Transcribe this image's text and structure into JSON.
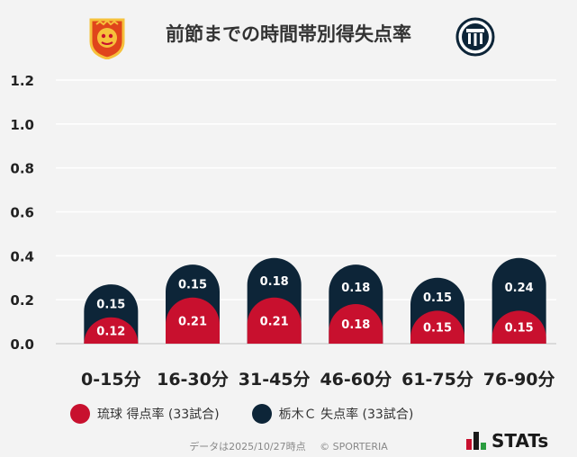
{
  "title": "前節までの時間帯別得失点率",
  "logos": {
    "left": "ryukyu-crest-icon",
    "right": "tochigi-crest-icon"
  },
  "colors": {
    "home": "#c8102e",
    "away": "#0d2538",
    "grid": "#ffffff",
    "background": "#f3f3f3"
  },
  "chart_data": {
    "type": "bar",
    "categories": [
      "0-15分",
      "16-30分",
      "31-45分",
      "46-60分",
      "61-75分",
      "76-90分"
    ],
    "series": [
      {
        "name": "琉球 得点率 (33試合)",
        "values": [
          0.12,
          0.21,
          0.21,
          0.18,
          0.15,
          0.15
        ]
      },
      {
        "name": "栃木Ｃ 失点率 (33試合)",
        "values": [
          0.15,
          0.15,
          0.18,
          0.18,
          0.15,
          0.24
        ]
      }
    ],
    "value_labels": [
      [
        "0.12",
        "0.21",
        "0.21",
        "0.18",
        "0.15",
        "0.15"
      ],
      [
        "0.15",
        "0.15",
        "0.18",
        "0.18",
        "0.15",
        "0.24"
      ]
    ],
    "ylim": [
      0,
      1.2
    ],
    "yticks": [
      "0.0",
      "0.2",
      "0.4",
      "0.6",
      "0.8",
      "1.0",
      "1.2"
    ],
    "ytick_values": [
      0,
      0.2,
      0.4,
      0.6,
      0.8,
      1.0,
      1.2
    ],
    "grid": true,
    "stacked": true
  },
  "legend": {
    "home_label": "琉球 得点率 (33試合)",
    "away_label": "栃木Ｃ 失点率 (33試合)"
  },
  "footer": {
    "date_text": "データは2025/10/27時点",
    "copyright": "© SPORTERIA"
  },
  "brand": {
    "name": "STATs"
  }
}
